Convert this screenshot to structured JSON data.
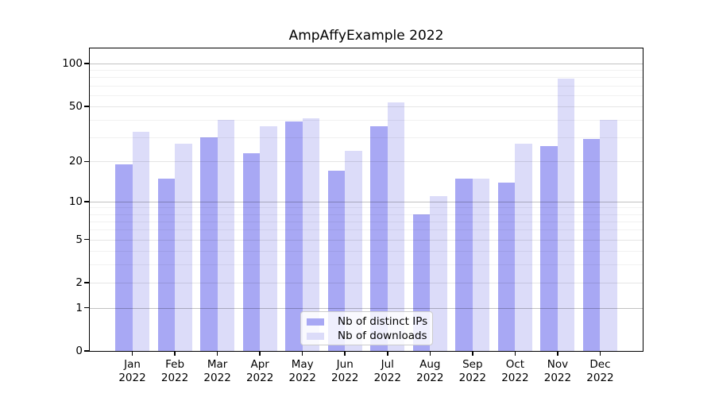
{
  "chart_data": {
    "type": "bar",
    "title": "AmpAffyExample 2022",
    "categories": [
      "Jan",
      "Feb",
      "Mar",
      "Apr",
      "May",
      "Jun",
      "Jul",
      "Aug",
      "Sep",
      "Oct",
      "Nov",
      "Dec"
    ],
    "year_label": "2022",
    "series": [
      {
        "name": "Nb of distinct IPs",
        "color": "#a8a8f4",
        "values": [
          19,
          15,
          30,
          23,
          39,
          17,
          36,
          8,
          15,
          14,
          26,
          29
        ]
      },
      {
        "name": "Nb of downloads",
        "color": "#dcdcf9",
        "values": [
          33,
          27,
          40,
          36,
          41,
          24,
          53,
          11,
          15,
          27,
          78,
          40
        ]
      }
    ],
    "xlabel": "",
    "ylabel": "",
    "y_scale": "log1p",
    "ylim": [
      0,
      127
    ],
    "y_ticks": [
      0,
      1,
      2,
      5,
      10,
      20,
      50,
      100
    ],
    "y_decade_gridlines": [
      1,
      10,
      100
    ],
    "y_minor_gridlines": [
      3,
      4,
      6,
      7,
      8,
      9,
      30,
      40,
      60,
      70,
      80,
      90
    ],
    "grid": "on",
    "legend_position": "bottom-center",
    "colors": {
      "axis": "#000000",
      "bar_distinct_ips": "#a8a8f4",
      "bar_downloads": "#dcdcf9"
    }
  }
}
